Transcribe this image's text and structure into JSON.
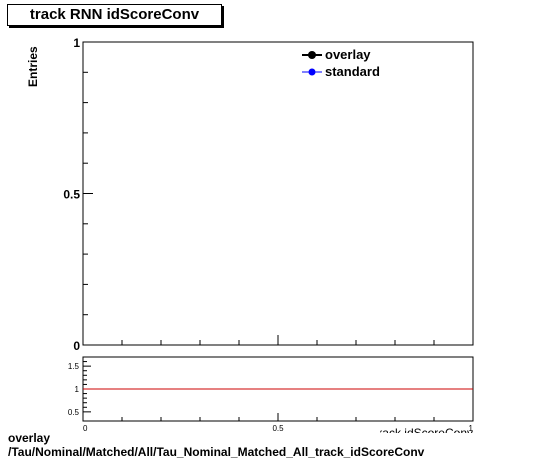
{
  "title": "track RNN idScoreConv",
  "footer": {
    "line1": "overlay",
    "line2": "/Tau/Nominal/Matched/All/Tau_Nominal_Matched_All_track_idScoreConv"
  },
  "chart_data": [
    {
      "type": "line",
      "panel": "main",
      "ylabel": "Entries",
      "xlim": [
        0,
        1
      ],
      "ylim": [
        0,
        1
      ],
      "yticks": [
        "0",
        "0.5",
        "1"
      ],
      "legend_position": "top-right",
      "series": [
        {
          "name": "overlay",
          "color": "#000000",
          "x": [],
          "y": []
        },
        {
          "name": "standard",
          "color": "#0000ff",
          "x": [],
          "y": []
        }
      ]
    },
    {
      "type": "line",
      "panel": "ratio",
      "xlabel": "track idScoreConv",
      "xlim": [
        0,
        1
      ],
      "ylim": [
        0.3,
        1.7
      ],
      "xticks": [
        "0",
        "0.5",
        "1"
      ],
      "yticks": [
        "0.5",
        "1",
        "1.5"
      ],
      "reference_line": {
        "y": 1,
        "color": "#cc0000"
      },
      "series": []
    }
  ]
}
